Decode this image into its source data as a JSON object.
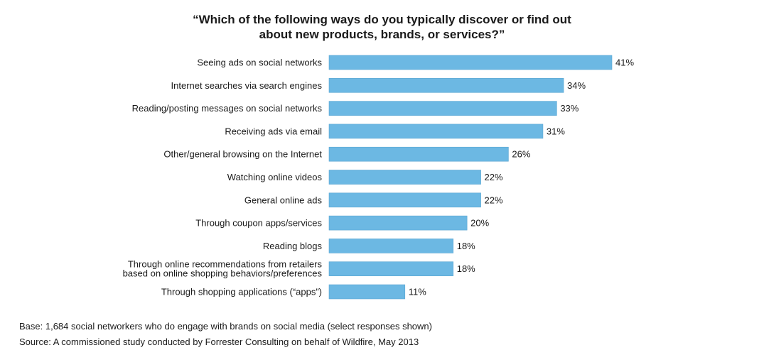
{
  "chart_data": {
    "type": "bar",
    "orientation": "horizontal",
    "title_lines": [
      "“Which of the following ways do you typically discover or find out",
      "about new products, brands, or services?”"
    ],
    "categories": [
      [
        "Seeing ads on social networks"
      ],
      [
        "Internet searches via search engines"
      ],
      [
        "Reading/posting messages on social networks"
      ],
      [
        "Receiving ads via email"
      ],
      [
        "Other/general browsing on the Internet"
      ],
      [
        "Watching online videos"
      ],
      [
        "General online ads"
      ],
      [
        "Through coupon apps/services"
      ],
      [
        "Reading blogs"
      ],
      [
        "Through online recommendations from retailers",
        "based on online shopping behaviors/preferences"
      ],
      [
        "Through shopping applications (“apps”)"
      ]
    ],
    "values": [
      41,
      34,
      33,
      31,
      26,
      22,
      22,
      20,
      18,
      18,
      11
    ],
    "value_labels": [
      "41%",
      "34%",
      "33%",
      "31%",
      "26%",
      "22%",
      "22%",
      "20%",
      "18%",
      "18%",
      "11%"
    ],
    "bar_color": "#6cb8e3",
    "bar_stroke": "#5aa6d2",
    "xlim": [
      0,
      41
    ],
    "grid": false,
    "legend": "none"
  },
  "notes": {
    "base": "Base: 1,684 social networkers who do engage with brands on social media (select responses shown)",
    "source": "Source: A commissioned study conducted by Forrester Consulting on behalf of Wildfire, May 2013"
  }
}
